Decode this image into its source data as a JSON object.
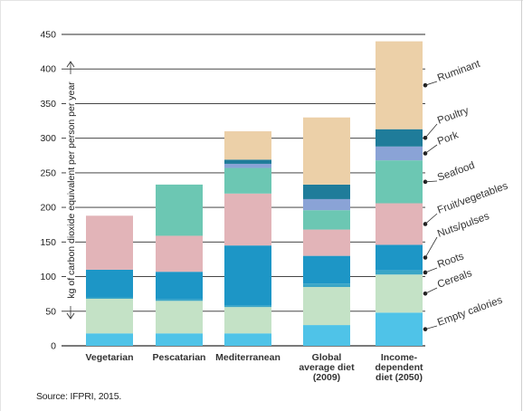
{
  "chart_data": {
    "type": "bar",
    "stacked": true,
    "ylabel": "kg of carbon dioxide equivalent per person per year",
    "ylim": [
      0,
      450
    ],
    "yticks": [
      0,
      50,
      100,
      150,
      200,
      250,
      300,
      350,
      400,
      450
    ],
    "categories": [
      "Vegetarian",
      "Pescatarian",
      "Mediterranean",
      "Global average diet (2009)",
      "Income-dependent diet (2050)"
    ],
    "category_lines": [
      [
        "Vegetarian"
      ],
      [
        "Pescatarian"
      ],
      [
        "Mediterranean"
      ],
      [
        "Global",
        "average diet",
        "(2009)"
      ],
      [
        "Income-",
        "dependent",
        "diet (2050)"
      ]
    ],
    "series": [
      {
        "name": "Empty calories",
        "color": "#4fc3e8",
        "values": [
          18,
          18,
          18,
          30,
          48
        ]
      },
      {
        "name": "Cereals",
        "color": "#c4e2c6",
        "values": [
          50,
          47,
          38,
          55,
          55
        ]
      },
      {
        "name": "Roots",
        "color": "#3aa6c6",
        "values": [
          2,
          2,
          2,
          5,
          6
        ]
      },
      {
        "name": "Nuts/pulses",
        "color": "#1d96c6",
        "values": [
          40,
          40,
          87,
          40,
          37
        ]
      },
      {
        "name": "Fruit/vegetables",
        "color": "#e2b4b8",
        "values": [
          78,
          52,
          75,
          38,
          60
        ]
      },
      {
        "name": "Seafood",
        "color": "#6cc7b3",
        "values": [
          0,
          74,
          37,
          28,
          62
        ]
      },
      {
        "name": "Pork",
        "color": "#8aa3d6",
        "values": [
          0,
          0,
          6,
          16,
          20
        ]
      },
      {
        "name": "Poultry",
        "color": "#1f7c9a",
        "values": [
          0,
          0,
          6,
          21,
          25
        ]
      },
      {
        "name": "Ruminant",
        "color": "#ecd0a8",
        "values": [
          0,
          0,
          41,
          97,
          127
        ]
      }
    ],
    "legend_placement": "right, labels pointing at the last bar",
    "grid": "horizontal"
  },
  "source": "Source: IFPRI, 2015."
}
